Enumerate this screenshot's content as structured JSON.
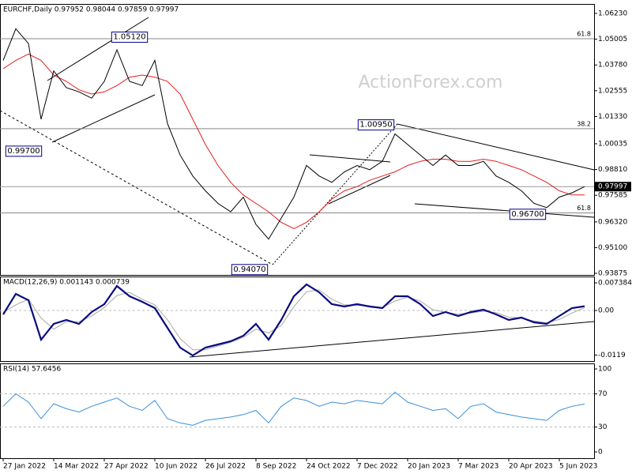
{
  "watermark": "ActionForex.com",
  "chart_data": [
    {
      "type": "line",
      "title": "EURCHF,Daily  0.97952 0.98044 0.97859 0.97997",
      "x": [
        0,
        8,
        16,
        24,
        32,
        40,
        48,
        56,
        64,
        72,
        80,
        88,
        96,
        104,
        112,
        120,
        128,
        136,
        144,
        152,
        160,
        168,
        176,
        184,
        192,
        200,
        208,
        216,
        224,
        232,
        240,
        248,
        256,
        264,
        272,
        280,
        288,
        296,
        304,
        312,
        320,
        328,
        336,
        344,
        352,
        360,
        368
      ],
      "xlim": [
        -2,
        374
      ],
      "series": [
        {
          "color": "#000000",
          "width": 1,
          "values": [
            1.04,
            1.055,
            1.048,
            1.012,
            1.035,
            1.027,
            1.025,
            1.022,
            1.03,
            1.045,
            1.03,
            1.028,
            1.04,
            1.01,
            0.995,
            0.985,
            0.978,
            0.972,
            0.968,
            0.975,
            0.962,
            0.955,
            0.965,
            0.975,
            0.99,
            0.985,
            0.982,
            0.987,
            0.99,
            0.988,
            0.992,
            1.005,
            1.0,
            0.995,
            0.99,
            0.995,
            0.99,
            0.99,
            0.992,
            0.985,
            0.982,
            0.978,
            0.972,
            0.97,
            0.975,
            0.977,
            0.97997
          ]
        },
        {
          "color": "#e0201e",
          "width": 1,
          "values": [
            1.036,
            1.04,
            1.043,
            1.04,
            1.033,
            1.03,
            1.026,
            1.024,
            1.025,
            1.028,
            1.032,
            1.033,
            1.032,
            1.03,
            1.024,
            1.012,
            1.0,
            0.99,
            0.982,
            0.976,
            0.972,
            0.968,
            0.963,
            0.96,
            0.963,
            0.968,
            0.974,
            0.978,
            0.98,
            0.983,
            0.985,
            0.987,
            0.99,
            0.992,
            0.993,
            0.993,
            0.992,
            0.992,
            0.993,
            0.992,
            0.99,
            0.988,
            0.985,
            0.982,
            0.978,
            0.976,
            0.976
          ]
        }
      ],
      "ylim": [
        0.938,
        1.0668
      ],
      "yticks": [
        {
          "value": 1.0623,
          "label": "1.06230"
        },
        {
          "value": 1.05005,
          "label": "1.05005"
        },
        {
          "value": 1.0378,
          "label": "1.03780"
        },
        {
          "value": 1.02555,
          "label": "1.02555"
        },
        {
          "value": 1.0133,
          "label": "1.01330"
        },
        {
          "value": 1.00035,
          "label": "1.00035"
        },
        {
          "value": 0.9881,
          "label": "0.98810"
        },
        {
          "value": 0.97585,
          "label": "0.97585"
        },
        {
          "value": 0.9632,
          "label": "0.96320"
        },
        {
          "value": 0.951,
          "label": "0.95100"
        },
        {
          "value": 0.93875,
          "label": "0.93875"
        }
      ],
      "levels": [
        {
          "value": 1.0503,
          "label": "61.8"
        },
        {
          "value": 1.0075,
          "label": "38.2"
        },
        {
          "value": 0.9675,
          "label": "61.8"
        }
      ],
      "last": 0.97997,
      "annotations": [
        {
          "x": 80,
          "value": 1.0512,
          "label": "1.05120"
        },
        {
          "x": 13,
          "value": 0.997,
          "label": "0.99700"
        },
        {
          "x": 156,
          "value": 0.9407,
          "label": "0.94070"
        },
        {
          "x": 236,
          "value": 1.0095,
          "label": "1.00950"
        },
        {
          "x": 332,
          "value": 0.967,
          "label": "0.96700"
        }
      ]
    },
    {
      "type": "line",
      "title": "MACD(12,26,9) 0.001143 0.000739",
      "x": [
        0,
        8,
        16,
        24,
        32,
        40,
        48,
        56,
        64,
        72,
        80,
        88,
        96,
        104,
        112,
        120,
        128,
        136,
        144,
        152,
        160,
        168,
        176,
        184,
        192,
        200,
        208,
        216,
        224,
        232,
        240,
        248,
        256,
        264,
        272,
        280,
        288,
        296,
        304,
        312,
        320,
        328,
        336,
        344,
        352,
        360,
        368
      ],
      "xlim": [
        -2,
        374
      ],
      "series": [
        {
          "color": "#0a0a80",
          "width": 2.2,
          "values": [
            -0.00106,
            0.00443,
            0.00274,
            -0.00781,
            -0.00359,
            -0.00253,
            -0.00359,
            -0.00042,
            0.00169,
            0.00654,
            0.0038,
            0.00232,
            0.00063,
            -0.00464,
            -0.00992,
            -0.01203,
            -0.00992,
            -0.00907,
            -0.00823,
            -0.00675,
            -0.00359,
            -0.00781,
            -0.00253,
            0.0038,
            0.00696,
            0.00485,
            0.00169,
            0.00106,
            0.00169,
            0.00106,
            0.00063,
            0.0038,
            0.0038,
            0.00169,
            -0.00148,
            -0.00042,
            -0.00148,
            -0.00042,
            0.00021,
            -0.00106,
            -0.00253,
            -0.0019,
            -0.00317,
            -0.00359,
            -0.00148,
            0.00063,
            0.001143
          ]
        },
        {
          "color": "#a8a8a8",
          "width": 1,
          "values": [
            -0.0005,
            0.0015,
            0.003,
            -0.002,
            -0.005,
            -0.003,
            -0.003,
            -0.0015,
            0.0008,
            0.004,
            0.0048,
            0.003,
            0.0015,
            -0.0025,
            -0.0075,
            -0.0105,
            -0.0105,
            -0.0095,
            -0.0085,
            -0.0072,
            -0.005,
            -0.006,
            -0.004,
            0.001,
            0.005,
            0.0055,
            0.003,
            0.0015,
            0.0014,
            0.0012,
            0.0008,
            0.0025,
            0.0036,
            0.0025,
            0.0002,
            -0.0005,
            -0.001,
            -0.0007,
            -0.0002,
            -0.0006,
            -0.0018,
            -0.002,
            -0.0028,
            -0.0033,
            -0.0024,
            -0.0007,
            0.000739
          ]
        }
      ],
      "ylim": [
        -0.0135,
        0.00907
      ],
      "yticks": [
        0.007384,
        {
          "value": 0,
          "label": "0.00"
        },
        -0.0119
      ],
      "levels": [
        0
      ]
    },
    {
      "type": "line",
      "title": "RSI(14) 57.6456",
      "x": [
        0,
        8,
        16,
        24,
        32,
        40,
        48,
        56,
        64,
        72,
        80,
        88,
        96,
        104,
        112,
        120,
        128,
        136,
        144,
        152,
        160,
        168,
        176,
        184,
        192,
        200,
        208,
        216,
        224,
        232,
        240,
        248,
        256,
        264,
        272,
        280,
        288,
        296,
        304,
        312,
        320,
        328,
        336,
        344,
        352,
        360,
        368
      ],
      "xlim": [
        -2,
        374
      ],
      "series": [
        {
          "color": "#3a8fd6",
          "width": 1,
          "values": [
            55,
            70,
            60,
            40,
            58,
            52,
            48,
            55,
            60,
            65,
            55,
            50,
            62,
            40,
            35,
            32,
            38,
            40,
            42,
            45,
            50,
            35,
            55,
            65,
            62,
            55,
            60,
            58,
            62,
            60,
            58,
            72,
            60,
            55,
            50,
            52,
            40,
            55,
            58,
            48,
            45,
            42,
            40,
            38,
            50,
            55,
            57.6456
          ]
        }
      ],
      "ylim": [
        -7.6,
        106.7
      ],
      "yticks": [
        100,
        70,
        30,
        0
      ],
      "levels": [
        70,
        30
      ],
      "xticks": [
        {
          "value": 0,
          "label": "27 Jan 2022"
        },
        {
          "value": 32,
          "label": "14 Mar 2022"
        },
        {
          "value": 64,
          "label": "27 Apr 2022"
        },
        {
          "value": 96,
          "label": "10 Jun 2022"
        },
        {
          "value": 128,
          "label": "26 Jul 2022"
        },
        {
          "value": 160,
          "label": "8 Sep 2022"
        },
        {
          "value": 192,
          "label": "24 Oct 2022"
        },
        {
          "value": 224,
          "label": "7 Dec 2022"
        },
        {
          "value": 256,
          "label": "20 Jan 2023"
        },
        {
          "value": 288,
          "label": "7 Mar 2023"
        },
        {
          "value": 320,
          "label": "20 Apr 2023"
        },
        {
          "value": 352,
          "label": "5 Jun 2023"
        }
      ]
    }
  ]
}
